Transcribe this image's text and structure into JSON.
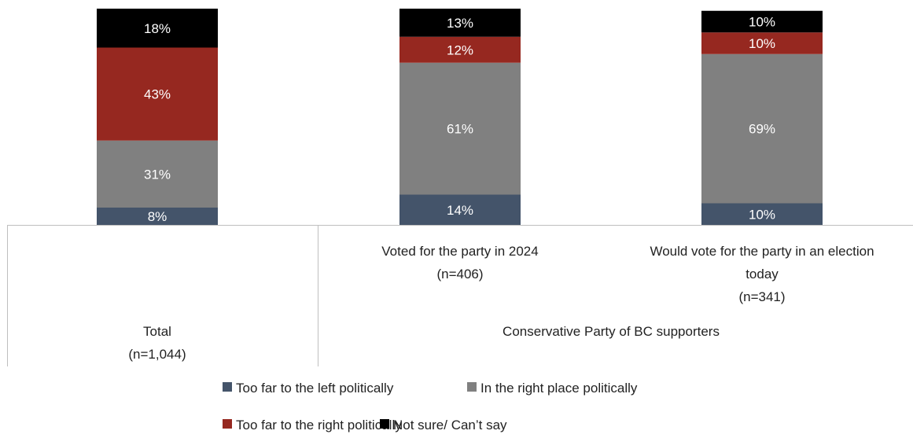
{
  "chart_data": {
    "type": "bar",
    "stacked": true,
    "categories": [
      {
        "lines": [
          "Total",
          "(n=1,044)"
        ]
      },
      {
        "lines": [
          "Voted for the party in 2024",
          "(n=406)"
        ]
      },
      {
        "lines": [
          "Would vote for the party in an election",
          "today",
          "(n=341)"
        ]
      }
    ],
    "group_labels": [
      {
        "text": "Conservative Party of BC supporters",
        "covers": [
          1,
          2
        ]
      }
    ],
    "series": [
      {
        "name": "Too far to the left politically",
        "color": "#44546a",
        "values": [
          8,
          14,
          10
        ],
        "labels": [
          "8%",
          "14%",
          "10%"
        ]
      },
      {
        "name": "In the right place politically",
        "color": "#808080",
        "values": [
          31,
          61,
          69
        ],
        "labels": [
          "31%",
          "61%",
          "69%"
        ]
      },
      {
        "name": "Too far to the right politically",
        "color": "#962820",
        "values": [
          43,
          12,
          10
        ],
        "labels": [
          "43%",
          "12%",
          "10%"
        ]
      },
      {
        "name": "Not sure/ Can’t say",
        "color": "#000000",
        "values": [
          18,
          13,
          10
        ],
        "labels": [
          "18%",
          "13%",
          "10%"
        ]
      }
    ],
    "ylim": [
      0,
      100
    ],
    "legend_position": "bottom"
  }
}
